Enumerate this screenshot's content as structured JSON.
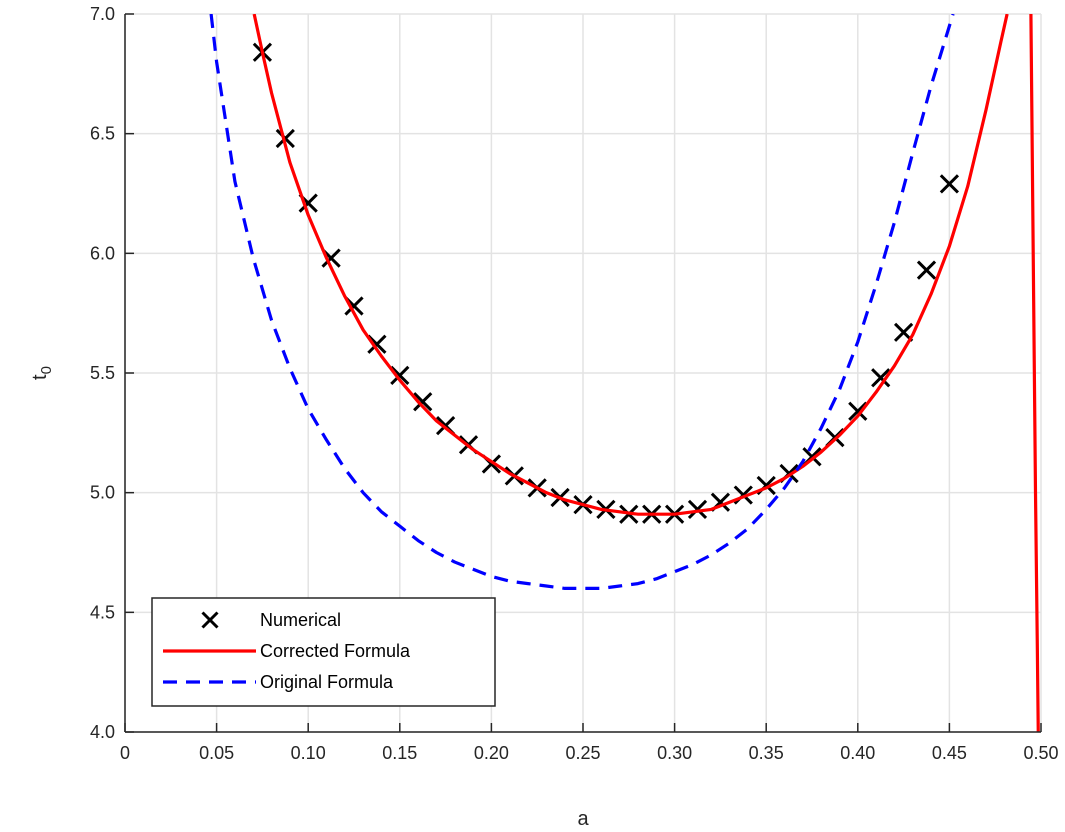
{
  "chart_data": {
    "type": "line",
    "xlabel": "a",
    "ylabel": {
      "main": "t",
      "sub": "0"
    },
    "xlim": [
      0,
      0.5
    ],
    "ylim": [
      4.0,
      7.0
    ],
    "grid": true,
    "x_ticks": [
      0,
      0.05,
      0.1,
      0.15,
      0.2,
      0.25,
      0.3,
      0.35,
      0.4,
      0.45,
      0.5
    ],
    "x_tick_labels": [
      "0",
      "0.05",
      "0.10",
      "0.15",
      "0.20",
      "0.25",
      "0.30",
      "0.35",
      "0.40",
      "0.45",
      "0.50"
    ],
    "y_ticks": [
      4.0,
      4.5,
      5.0,
      5.5,
      6.0,
      6.5,
      7.0
    ],
    "y_tick_labels": [
      "4.0",
      "4.5",
      "5.0",
      "5.5",
      "6.0",
      "6.5",
      "7.0"
    ],
    "legend_position": "bottom-left",
    "series": [
      {
        "name": "Numerical",
        "style": "markers",
        "marker": "x",
        "color": "#000000",
        "x": [
          0.075,
          0.0875,
          0.1,
          0.1125,
          0.125,
          0.1375,
          0.15,
          0.1625,
          0.175,
          0.1875,
          0.2,
          0.2125,
          0.225,
          0.2375,
          0.25,
          0.2625,
          0.275,
          0.2875,
          0.3,
          0.3125,
          0.325,
          0.3375,
          0.35,
          0.3625,
          0.375,
          0.3875,
          0.4,
          0.4125,
          0.425,
          0.4375,
          0.45
        ],
        "y": [
          6.84,
          6.48,
          6.21,
          5.98,
          5.78,
          5.62,
          5.49,
          5.38,
          5.28,
          5.2,
          5.12,
          5.07,
          5.02,
          4.98,
          4.95,
          4.93,
          4.91,
          4.91,
          4.91,
          4.93,
          4.96,
          4.99,
          5.03,
          5.08,
          5.15,
          5.23,
          5.34,
          5.48,
          5.67,
          5.93,
          6.29
        ]
      },
      {
        "name": "Corrected Formula",
        "style": "solid",
        "color": "#ff0000",
        "x": [
          0.0705,
          0.075,
          0.08,
          0.09,
          0.1,
          0.11,
          0.12,
          0.13,
          0.14,
          0.15,
          0.16,
          0.17,
          0.18,
          0.19,
          0.2,
          0.21,
          0.22,
          0.23,
          0.24,
          0.25,
          0.26,
          0.27,
          0.28,
          0.29,
          0.3,
          0.31,
          0.32,
          0.33,
          0.34,
          0.35,
          0.36,
          0.37,
          0.38,
          0.39,
          0.4,
          0.41,
          0.42,
          0.43,
          0.44,
          0.45,
          0.46,
          0.47,
          0.478,
          0.4815
        ],
        "y": [
          7.0,
          6.84,
          6.67,
          6.38,
          6.16,
          5.98,
          5.82,
          5.68,
          5.57,
          5.47,
          5.38,
          5.3,
          5.24,
          5.18,
          5.13,
          5.08,
          5.04,
          5.0,
          4.97,
          4.95,
          4.93,
          4.92,
          4.91,
          4.91,
          4.91,
          4.92,
          4.93,
          4.96,
          4.99,
          5.02,
          5.06,
          5.11,
          5.17,
          5.24,
          5.32,
          5.42,
          5.53,
          5.66,
          5.83,
          6.03,
          6.28,
          6.6,
          6.88,
          7.0
        ]
      },
      {
        "name": "",
        "style": "solid",
        "color": "#ff0000",
        "x": [
          0.4945,
          0.495,
          0.496,
          0.497,
          0.498,
          0.4985
        ],
        "y": [
          7.0,
          6.6,
          5.8,
          5.0,
          4.35,
          4.0
        ]
      },
      {
        "name": "Original Formula",
        "style": "dashed",
        "color": "#0000ff",
        "x": [
          0.047,
          0.05,
          0.06,
          0.07,
          0.08,
          0.09,
          0.1,
          0.11,
          0.12,
          0.13,
          0.14,
          0.15,
          0.16,
          0.17,
          0.18,
          0.19,
          0.2,
          0.21,
          0.22,
          0.23,
          0.24,
          0.25,
          0.26,
          0.27,
          0.28,
          0.29,
          0.3,
          0.31,
          0.32,
          0.33,
          0.34,
          0.35,
          0.36,
          0.37,
          0.38,
          0.39,
          0.4,
          0.41,
          0.42,
          0.43,
          0.44,
          0.452
        ],
        "y": [
          7.0,
          6.8,
          6.3,
          5.98,
          5.72,
          5.52,
          5.35,
          5.22,
          5.1,
          5.0,
          4.92,
          4.86,
          4.8,
          4.75,
          4.71,
          4.68,
          4.65,
          4.63,
          4.62,
          4.61,
          4.6,
          4.6,
          4.6,
          4.61,
          4.62,
          4.64,
          4.67,
          4.7,
          4.74,
          4.79,
          4.85,
          4.93,
          5.02,
          5.13,
          5.27,
          5.43,
          5.63,
          5.87,
          6.13,
          6.42,
          6.7,
          7.0
        ]
      }
    ]
  }
}
